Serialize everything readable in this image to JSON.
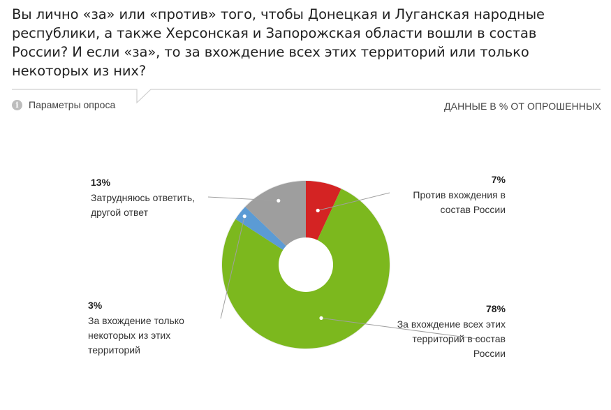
{
  "header": {
    "title": "Вы лично «за» или «против» того, чтобы Донецкая и Луганская народные республики, а также Херсонская и Запорожская области вошли в состав России? И если «за», то за вхождение всех этих территорий или только некоторых из них?",
    "params_label": "Параметры опроса",
    "info_icon_glyph": "i",
    "units_label": "ДАННЫЕ В % ОТ ОПРОШЕННЫХ"
  },
  "chart_data": {
    "type": "pie",
    "variant": "donut",
    "slices": [
      {
        "label_lines": [
          "Против вхождения в",
          "состав России"
        ],
        "value": 7,
        "value_label": "7%",
        "color": "#d42323"
      },
      {
        "label_lines": [
          "За вхождение всех этих",
          "территорий в состав",
          "России"
        ],
        "value": 78,
        "value_label": "78%",
        "color": "#7cb81e"
      },
      {
        "label_lines": [
          "За вхождение только",
          "некоторых из этих",
          "территорий"
        ],
        "value": 3,
        "value_label": "3%",
        "color": "#5b9bd5"
      },
      {
        "label_lines": [
          "Затрудняюсь ответить,",
          "другой ответ"
        ],
        "value": 13,
        "value_label": "13%",
        "color": "#9e9e9e"
      }
    ]
  }
}
